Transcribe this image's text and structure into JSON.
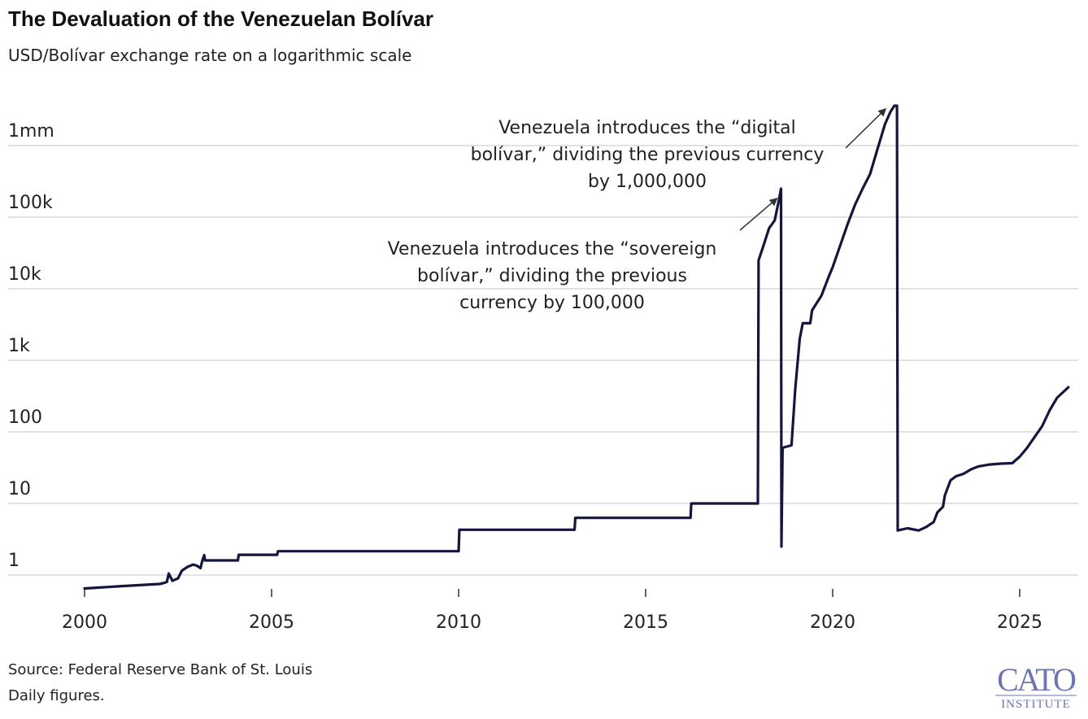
{
  "chart_data": {
    "type": "line",
    "title": "The Devaluation of the Venezuelan Bolívar",
    "subtitle": "USD/Bolívar exchange rate on a logarithmic scale",
    "xlabel": "",
    "ylabel": "",
    "y_scale": "log",
    "ylim": [
      0.5,
      5000000
    ],
    "xlim": [
      2000.0,
      2026.4
    ],
    "grid": "horizontal",
    "x_ticks": [
      {
        "value": 2000,
        "label": "2000"
      },
      {
        "value": 2005,
        "label": "2005"
      },
      {
        "value": 2010,
        "label": "2010"
      },
      {
        "value": 2015,
        "label": "2015"
      },
      {
        "value": 2020,
        "label": "2020"
      },
      {
        "value": 2025,
        "label": "2025"
      }
    ],
    "y_ticks": [
      {
        "value": 1,
        "label": "1"
      },
      {
        "value": 10,
        "label": "10"
      },
      {
        "value": 100,
        "label": "100"
      },
      {
        "value": 1000,
        "label": "1k"
      },
      {
        "value": 10000,
        "label": "10k"
      },
      {
        "value": 100000,
        "label": "100k"
      },
      {
        "value": 1000000,
        "label": "1mm"
      }
    ],
    "line_color": "#14163f",
    "series": [
      {
        "points": [
          [
            2000.0,
            0.65
          ],
          [
            2001.0,
            0.7
          ],
          [
            2002.0,
            0.75
          ],
          [
            2002.1,
            0.77
          ],
          [
            2002.2,
            0.8
          ],
          [
            2002.25,
            1.05
          ],
          [
            2002.35,
            0.83
          ],
          [
            2002.5,
            0.9
          ],
          [
            2002.6,
            1.15
          ],
          [
            2002.75,
            1.3
          ],
          [
            2002.9,
            1.4
          ],
          [
            2003.0,
            1.35
          ],
          [
            2003.1,
            1.25
          ],
          [
            2003.15,
            1.6
          ],
          [
            2003.2,
            1.9
          ],
          [
            2003.22,
            1.6
          ],
          [
            2004.1,
            1.6
          ],
          [
            2004.12,
            1.92
          ],
          [
            2005.15,
            1.92
          ],
          [
            2005.17,
            2.15
          ],
          [
            2010.0,
            2.15
          ],
          [
            2010.02,
            4.3
          ],
          [
            2013.1,
            4.3
          ],
          [
            2013.12,
            6.3
          ],
          [
            2016.2,
            6.3
          ],
          [
            2016.22,
            10.0
          ],
          [
            2018.0,
            10.0
          ],
          [
            2018.02,
            25000
          ],
          [
            2018.15,
            40000
          ],
          [
            2018.3,
            70000
          ],
          [
            2018.45,
            90000
          ],
          [
            2018.55,
            160000
          ],
          [
            2018.62,
            250000
          ],
          [
            2018.63,
            2.5
          ],
          [
            2018.66,
            60
          ],
          [
            2018.9,
            65
          ],
          [
            2019.0,
            400
          ],
          [
            2019.12,
            2000
          ],
          [
            2019.2,
            3300
          ],
          [
            2019.4,
            3300
          ],
          [
            2019.45,
            5000
          ],
          [
            2019.7,
            8000
          ],
          [
            2019.9,
            15000
          ],
          [
            2020.0,
            20000
          ],
          [
            2020.2,
            40000
          ],
          [
            2020.4,
            80000
          ],
          [
            2020.6,
            150000
          ],
          [
            2020.8,
            250000
          ],
          [
            2021.0,
            400000
          ],
          [
            2021.2,
            900000
          ],
          [
            2021.4,
            2000000
          ],
          [
            2021.55,
            3000000
          ],
          [
            2021.65,
            3600000
          ],
          [
            2021.72,
            3600000
          ],
          [
            2021.74,
            4.2
          ],
          [
            2022.0,
            4.5
          ],
          [
            2022.3,
            4.2
          ],
          [
            2022.5,
            4.7
          ],
          [
            2022.7,
            5.5
          ],
          [
            2022.8,
            7.5
          ],
          [
            2022.95,
            9.0
          ],
          [
            2023.0,
            13
          ],
          [
            2023.15,
            21
          ],
          [
            2023.3,
            24
          ],
          [
            2023.5,
            26
          ],
          [
            2023.7,
            30
          ],
          [
            2023.9,
            33
          ],
          [
            2024.2,
            35
          ],
          [
            2024.5,
            36
          ],
          [
            2024.8,
            36.5
          ],
          [
            2025.0,
            45
          ],
          [
            2025.2,
            60
          ],
          [
            2025.4,
            85
          ],
          [
            2025.6,
            120
          ],
          [
            2025.8,
            200
          ],
          [
            2026.0,
            300
          ],
          [
            2026.3,
            420
          ]
        ]
      }
    ],
    "annotations": [
      {
        "lines": [
          "Venezuela introduces the “sovereign",
          "bolívar,” dividing the previous",
          "currency by 100,000"
        ],
        "points_to": [
          2018.6,
          200000
        ]
      },
      {
        "lines": [
          "Venezuela introduces the “digital",
          "bolívar,” dividing the previous currency",
          "by 1,000,000"
        ],
        "points_to": [
          2021.5,
          3600000
        ]
      }
    ]
  },
  "footer": {
    "source": "Source: Federal Reserve Bank of St. Louis",
    "note": "Daily figures."
  },
  "logo": {
    "line1": "CATO",
    "line2": "INSTITUTE",
    "color": "#6e74b3"
  }
}
